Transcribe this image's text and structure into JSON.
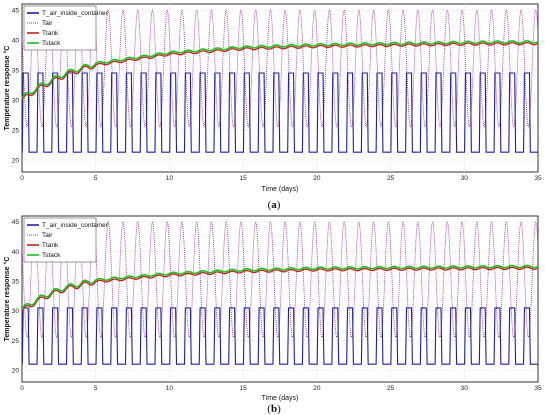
{
  "chart_data": [
    {
      "type": "line",
      "panel_label": "a",
      "xlabel": "Time (days)",
      "ylabel": "Temperature response °C",
      "xlim": [
        0,
        35
      ],
      "ylim": [
        18,
        46
      ],
      "xticks": [
        0,
        5,
        10,
        15,
        20,
        25,
        30,
        35
      ],
      "yticks": [
        20,
        25,
        30,
        35,
        40,
        45
      ],
      "grid": true,
      "legend_position": "top-left",
      "series": [
        {
          "name": "T_air_inside_container",
          "color": "#1f1fa8",
          "style": "solid",
          "pattern": "daily square wave",
          "low": 21.3,
          "high": 34.5,
          "period_days": 1
        },
        {
          "name": "Tair",
          "color": "#a0289f",
          "style": "dotted",
          "pattern": "daily oscillation",
          "min": 25.5,
          "max": 45,
          "period_days": 1
        },
        {
          "name": "Ttank",
          "color": "#c81e1e",
          "style": "solid",
          "x": [
            0,
            1,
            2,
            3,
            5,
            10,
            15,
            20,
            25,
            30,
            35
          ],
          "y": [
            30,
            31.7,
            33.0,
            34.2,
            35.8,
            37.6,
            38.5,
            38.9,
            39.1,
            39.3,
            39.4
          ]
        },
        {
          "name": "Tstack",
          "color": "#20c020",
          "style": "solid",
          "x": [
            0,
            1,
            2,
            3,
            5,
            10,
            15,
            20,
            25,
            30,
            35
          ],
          "y": [
            30.3,
            32.0,
            33.3,
            34.5,
            36.1,
            37.9,
            38.8,
            39.2,
            39.4,
            39.6,
            39.7
          ]
        }
      ]
    },
    {
      "type": "line",
      "panel_label": "b",
      "xlabel": "Time (days)",
      "ylabel": "Temperature response °C",
      "xlim": [
        0,
        35
      ],
      "ylim": [
        18,
        46
      ],
      "xticks": [
        0,
        5,
        10,
        15,
        20,
        25,
        30,
        35
      ],
      "yticks": [
        20,
        25,
        30,
        35,
        40,
        45
      ],
      "grid": true,
      "legend_position": "top-left",
      "series": [
        {
          "name": "T_air_inside_container",
          "color": "#1f1fa8",
          "style": "solid",
          "pattern": "daily square wave",
          "low": 21.0,
          "high": 30.5,
          "period_days": 1
        },
        {
          "name": "Tair",
          "color": "#a0289f",
          "style": "dotted",
          "pattern": "daily oscillation",
          "min": 25.5,
          "max": 45,
          "period_days": 1
        },
        {
          "name": "Ttank",
          "color": "#c81e1e",
          "style": "solid",
          "x": [
            0,
            1,
            2,
            3,
            5,
            10,
            15,
            20,
            25,
            30,
            35
          ],
          "y": [
            30,
            31.6,
            32.8,
            33.7,
            34.9,
            36.0,
            36.6,
            36.9,
            37.0,
            37.1,
            37.2
          ]
        },
        {
          "name": "Tstack",
          "color": "#20c020",
          "style": "solid",
          "x": [
            0,
            1,
            2,
            3,
            5,
            10,
            15,
            20,
            25,
            30,
            35
          ],
          "y": [
            30.3,
            31.9,
            33.1,
            34.0,
            35.2,
            36.3,
            36.9,
            37.2,
            37.3,
            37.4,
            37.5
          ]
        }
      ]
    }
  ]
}
